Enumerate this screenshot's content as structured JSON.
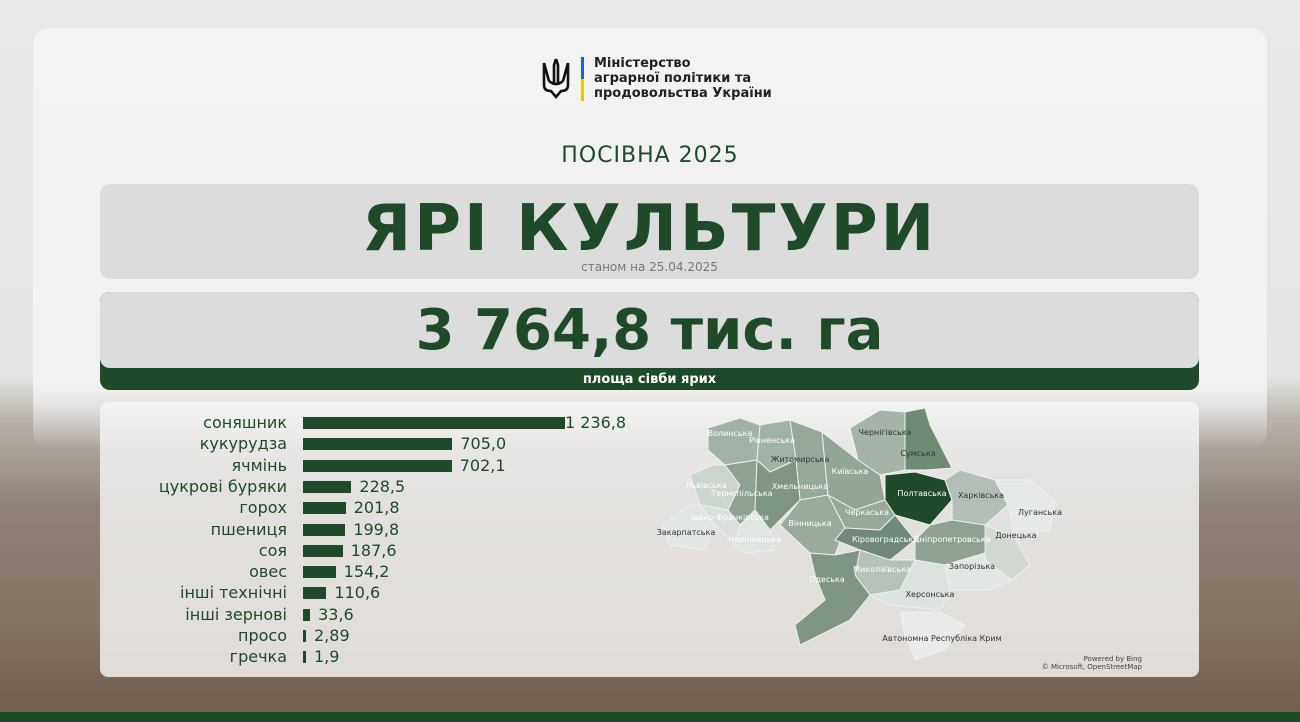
{
  "ministry": {
    "lines": [
      "Міністерство",
      "аграрної політики та",
      "продовольства України"
    ]
  },
  "header": {
    "campaign": "ПОСІВНА 2025",
    "title": "ЯРІ КУЛЬТУРИ",
    "as_of": "станом на 25.04.2025"
  },
  "summary": {
    "total": "3 764,8 тис. га",
    "caption": "площа сівби ярих"
  },
  "colors": {
    "accent": "#1e4a2a",
    "map_highlight": "#1e4a2a",
    "flag_blue": "#1f5fd1",
    "flag_yellow": "#f2c200"
  },
  "chart_data": {
    "type": "bar",
    "orientation": "horizontal",
    "unit": "тис. га",
    "categories": [
      "соняшник",
      "кукурудза",
      "ячмінь",
      "цукрові буряки",
      "горох",
      "пшениця",
      "соя",
      "овес",
      "інші технічні",
      "інші зернові",
      "просо",
      "гречка"
    ],
    "values": [
      1236.8,
      705.0,
      702.1,
      228.5,
      201.8,
      199.8,
      187.6,
      154.2,
      110.6,
      33.6,
      2.89,
      1.9
    ],
    "value_labels": [
      "1 236,8",
      "705,0",
      "702,1",
      "228,5",
      "201,8",
      "199,8",
      "187,6",
      "154,2",
      "110,6",
      "33,6",
      "2,89",
      "1,9"
    ]
  },
  "map": {
    "highlighted": "Полтавська",
    "regions": [
      "Волинська",
      "Рівненська",
      "Житомирська",
      "Чернігівська",
      "Сумська",
      "Київська",
      "Львівська",
      "Тернопільська",
      "Хмельницька",
      "Полтавська",
      "Харківська",
      "Луганська",
      "Черкаська",
      "Вінницька",
      "Закарпатська",
      "Івано-Франківська",
      "Чернівецька",
      "Кіровоградська",
      "Дніпропетровська",
      "Донецька",
      "Запорізька",
      "Миколаївська",
      "Одеська",
      "Херсонська",
      "Автономна Республіка Крим"
    ],
    "credit": [
      "Powered by Bing",
      "© Microsoft, OpenStreetMap"
    ]
  }
}
